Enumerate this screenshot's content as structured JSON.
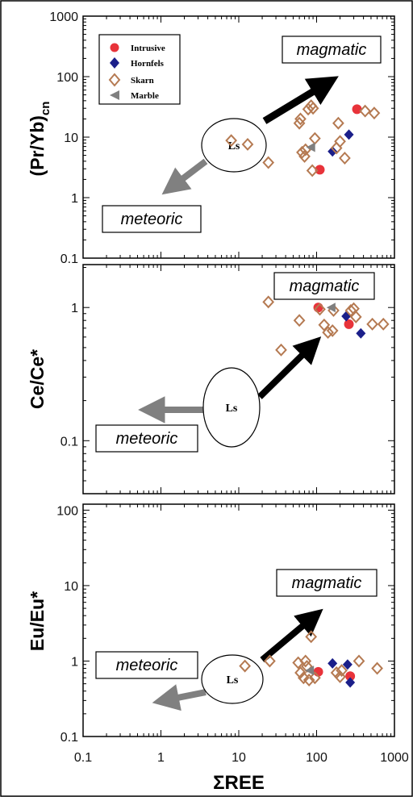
{
  "chart_data": {
    "type": "scatter",
    "x_axis": {
      "label": "ΣREE",
      "scale": "log",
      "range": [
        0.1,
        1000
      ],
      "ticks": [
        "0.1",
        "1",
        "10",
        "100",
        "1000"
      ]
    },
    "legend": {
      "placement": "top-left",
      "items": [
        {
          "name": "Intrusive",
          "marker": "circle",
          "color": "#e8333a"
        },
        {
          "name": "Hornfels",
          "marker": "diamond",
          "color": "#1b1f8a"
        },
        {
          "name": "Skarn",
          "marker": "diamond-open",
          "color": "#b57a52"
        },
        {
          "name": "Marble",
          "marker": "triangle-left",
          "color": "#7f7f7f"
        }
      ]
    },
    "panels": [
      {
        "id": "pryb",
        "ylabel_main": "(Pr/Yb)",
        "ylabel_sub": "cn",
        "y_scale": "log",
        "y_range": [
          0.1,
          1000
        ],
        "y_ticks": [
          "0.1",
          "1",
          "10",
          "100",
          "1000"
        ],
        "annotations": {
          "upper": "magmatic",
          "lower": "meteoric",
          "ellipse": "Ls"
        },
        "series": [
          {
            "name": "Intrusive",
            "points": [
              [
                110,
                2.9
              ],
              [
                330,
                29
              ]
            ]
          },
          {
            "name": "Hornfels",
            "points": [
              [
                160,
                5.8
              ],
              [
                260,
                11
              ]
            ]
          },
          {
            "name": "Skarn",
            "points": [
              [
                8,
                8.8
              ],
              [
                13,
                7.6
              ],
              [
                24,
                3.8
              ],
              [
                60,
                17
              ],
              [
                62,
                20
              ],
              [
                65,
                5.6
              ],
              [
                70,
                4.8
              ],
              [
                72,
                6.2
              ],
              [
                78,
                29
              ],
              [
                85,
                33
              ],
              [
                88,
                2.8
              ],
              [
                90,
                30
              ],
              [
                95,
                9.5
              ],
              [
                180,
                6.6
              ],
              [
                190,
                17
              ],
              [
                200,
                8.5
              ],
              [
                230,
                4.5
              ],
              [
                420,
                27
              ],
              [
                550,
                25
              ]
            ]
          },
          {
            "name": "Marble",
            "points": [
              [
                85,
                6.8
              ]
            ]
          }
        ]
      },
      {
        "id": "cece",
        "ylabel_main": "Ce/Ce*",
        "y_scale": "log",
        "y_range": [
          0.04,
          2.1
        ],
        "y_ticks": [
          "0.1",
          "1"
        ],
        "annotations": {
          "upper": "magmatic",
          "lower": "meteoric",
          "ellipse": "Ls"
        },
        "series": [
          {
            "name": "Intrusive",
            "points": [
              [
                105,
                1.0
              ],
              [
                260,
                0.75
              ]
            ]
          },
          {
            "name": "Hornfels",
            "points": [
              [
                240,
                0.86
              ],
              [
                370,
                0.64
              ]
            ]
          },
          {
            "name": "Skarn",
            "points": [
              [
                24,
                1.1
              ],
              [
                35,
                0.48
              ],
              [
                60,
                0.8
              ],
              [
                110,
                0.97
              ],
              [
                125,
                0.74
              ],
              [
                140,
                0.65
              ],
              [
                160,
                0.67
              ],
              [
                165,
                0.95
              ],
              [
                275,
                0.95
              ],
              [
                300,
                0.98
              ],
              [
                320,
                0.85
              ],
              [
                520,
                0.75
              ],
              [
                720,
                0.75
              ]
            ]
          },
          {
            "name": "Marble",
            "points": [
              [
                155,
                1.0
              ]
            ]
          }
        ]
      },
      {
        "id": "euu",
        "ylabel_main": "Eu/Eu*",
        "y_scale": "log",
        "y_range": [
          0.1,
          120
        ],
        "y_ticks": [
          "0.1",
          "1",
          "10",
          "100"
        ],
        "annotations": {
          "upper": "magmatic",
          "lower": "meteoric",
          "ellipse": "Ls"
        },
        "series": [
          {
            "name": "Intrusive",
            "points": [
              [
                105,
                0.72
              ],
              [
                270,
                0.63
              ]
            ]
          },
          {
            "name": "Hornfels",
            "points": [
              [
                160,
                0.93
              ],
              [
                250,
                0.9
              ],
              [
                270,
                0.52
              ]
            ]
          },
          {
            "name": "Skarn",
            "points": [
              [
                12,
                0.86
              ],
              [
                25,
                1.0
              ],
              [
                58,
                0.95
              ],
              [
                62,
                0.7
              ],
              [
                68,
                0.6
              ],
              [
                72,
                1.0
              ],
              [
                75,
                0.85
              ],
              [
                80,
                0.56
              ],
              [
                85,
                2.1
              ],
              [
                95,
                0.6
              ],
              [
                180,
                0.7
              ],
              [
                200,
                0.62
              ],
              [
                210,
                0.75
              ],
              [
                350,
                1.0
              ],
              [
                600,
                0.8
              ]
            ]
          },
          {
            "name": "Marble",
            "points": [
              [
                82,
                0.75
              ]
            ]
          }
        ]
      }
    ]
  }
}
